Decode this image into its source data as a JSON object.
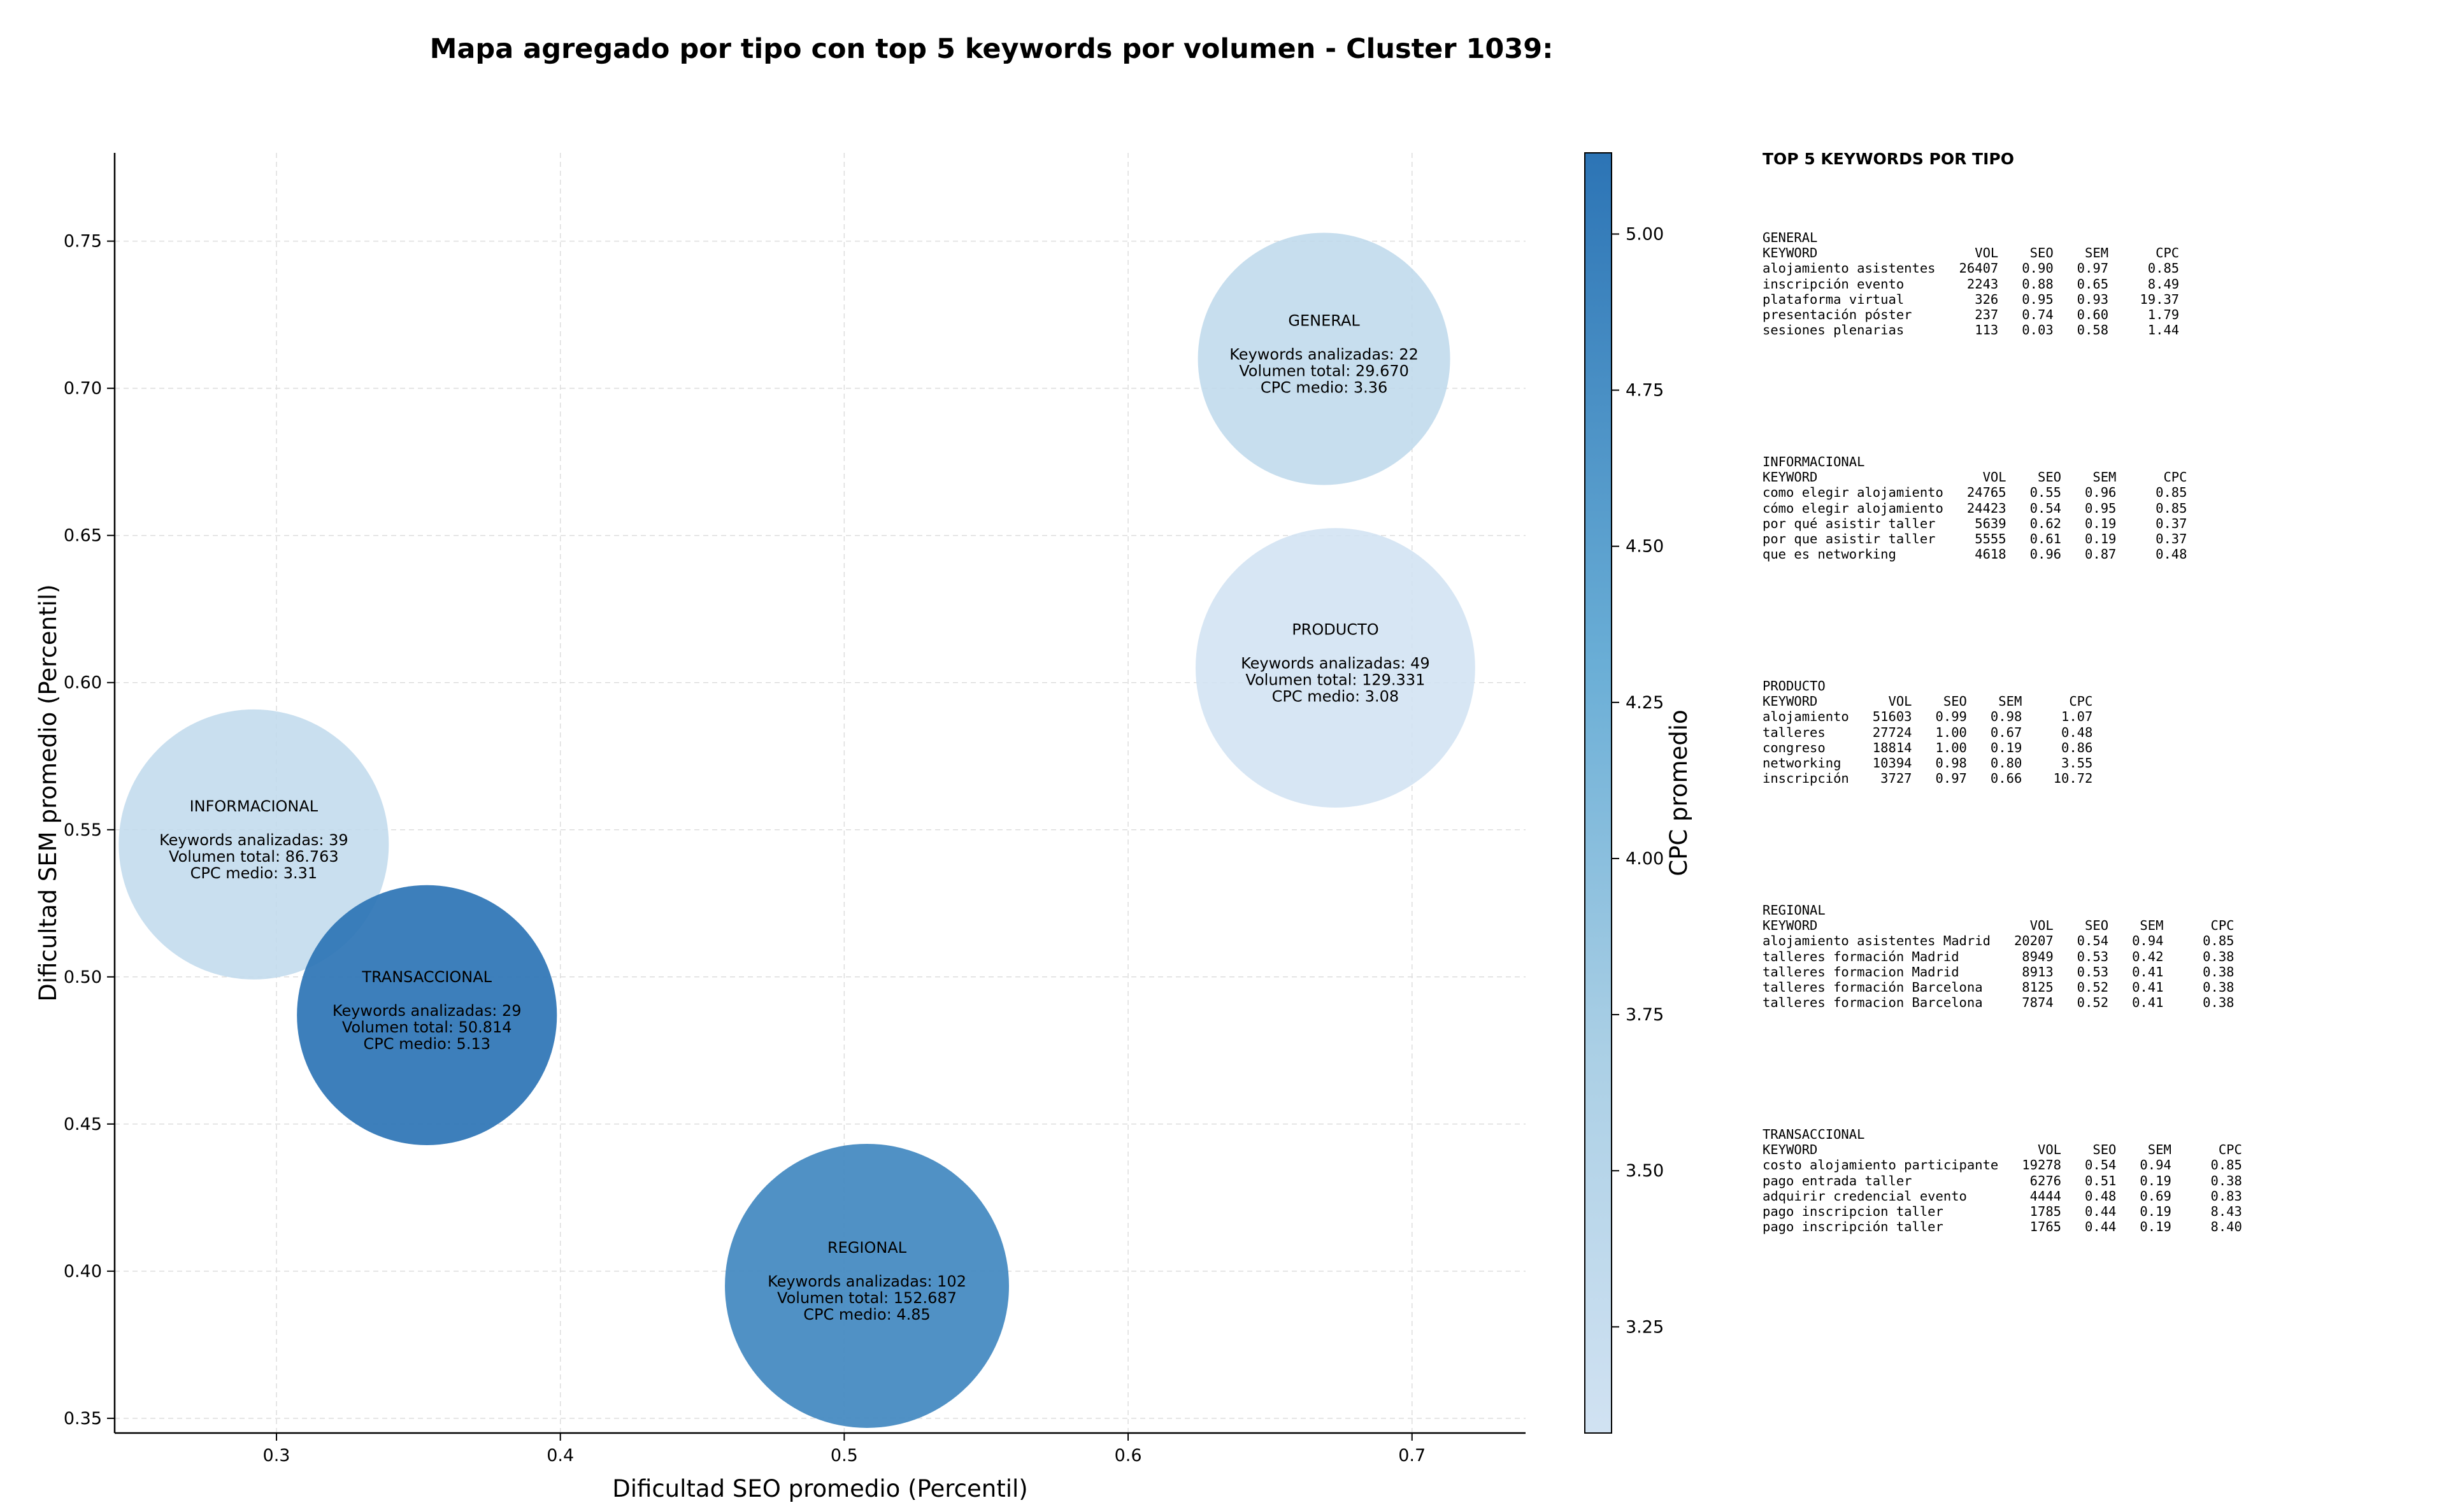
{
  "title": "Mapa agregado por tipo con top 5 keywords por volumen - Cluster 1039:",
  "colors": {
    "cmap_low": "#d1e2f2",
    "cmap_mid_low": "#aacfe5",
    "cmap_mid": "#6aaed6",
    "cmap_high": "#2c74b5",
    "grid": "#dddddd",
    "axis": "#000000"
  },
  "chart_data": {
    "type": "scatter",
    "title": "Mapa agregado por tipo con top 5 keywords por volumen - Cluster 1039:",
    "xlabel": "Dificultad SEO promedio (Percentil)",
    "ylabel": "Dificultad SEM promedio (Percentil)",
    "xlim": [
      0.243,
      0.74
    ],
    "ylim": [
      0.345,
      0.78
    ],
    "xticks": [
      "0.3",
      "0.4",
      "0.5",
      "0.6",
      "0.7"
    ],
    "yticks": [
      "0.35",
      "0.40",
      "0.45",
      "0.50",
      "0.55",
      "0.60",
      "0.65",
      "0.70",
      "0.75"
    ],
    "grid": true,
    "bubble_size": "volumen total",
    "colorbar": {
      "label": "CPC promedio",
      "range": [
        3.08,
        5.13
      ],
      "ticks": [
        "3.25",
        "3.50",
        "3.75",
        "4.00",
        "4.25",
        "4.50",
        "4.75",
        "5.00"
      ]
    },
    "points": [
      {
        "name": "GENERAL",
        "x": 0.669,
        "y": 0.71,
        "volume": 29670,
        "cpc": 3.36,
        "label_name": "GENERAL",
        "label_lines": [
          "Keywords analizadas: 22",
          "Volumen total: 29.670",
          "CPC medio: 3.36"
        ]
      },
      {
        "name": "PRODUCTO",
        "x": 0.673,
        "y": 0.605,
        "volume": 129331,
        "cpc": 3.08,
        "label_name": "PRODUCTO",
        "label_lines": [
          "Keywords analizadas: 49",
          "Volumen total: 129.331",
          "CPC medio: 3.08"
        ]
      },
      {
        "name": "INFORMACIONAL",
        "x": 0.292,
        "y": 0.545,
        "volume": 86763,
        "cpc": 3.31,
        "label_name": "INFORMACIONAL",
        "label_lines": [
          "Keywords analizadas: 39",
          "Volumen total: 86.763",
          "CPC medio: 3.31"
        ]
      },
      {
        "name": "TRANSACCIONAL",
        "x": 0.353,
        "y": 0.487,
        "volume": 50814,
        "cpc": 5.13,
        "label_name": "TRANSACCIONAL",
        "label_lines": [
          "Keywords analizadas: 29",
          "Volumen total: 50.814",
          "CPC medio: 5.13"
        ]
      },
      {
        "name": "REGIONAL",
        "x": 0.508,
        "y": 0.395,
        "volume": 152687,
        "cpc": 4.85,
        "label_name": "REGIONAL",
        "label_lines": [
          "Keywords analizadas: 102",
          "Volumen total: 152.687",
          "CPC medio: 4.85"
        ]
      }
    ]
  },
  "side_panel": {
    "title": "TOP 5 KEYWORDS POR TIPO",
    "blocks": [
      {
        "lines": [
          "GENERAL",
          "KEYWORD                    VOL    SEO    SEM      CPC",
          "alojamiento asistentes   26407   0.90   0.97     0.85",
          "inscripción evento        2243   0.88   0.65     8.49",
          "plataforma virtual         326   0.95   0.93    19.37",
          "presentación póster        237   0.74   0.60     1.79",
          "sesiones plenarias         113   0.03   0.58     1.44"
        ]
      },
      {
        "lines": [
          "INFORMACIONAL",
          "KEYWORD                     VOL    SEO    SEM      CPC",
          "como elegir alojamiento   24765   0.55   0.96     0.85",
          "cómo elegir alojamiento   24423   0.54   0.95     0.85",
          "por qué asistir taller     5639   0.62   0.19     0.37",
          "por que asistir taller     5555   0.61   0.19     0.37",
          "que es networking          4618   0.96   0.87     0.48"
        ]
      },
      {
        "lines": [
          "PRODUCTO",
          "KEYWORD         VOL    SEO    SEM      CPC",
          "alojamiento   51603   0.99   0.98     1.07",
          "talleres      27724   1.00   0.67     0.48",
          "congreso      18814   1.00   0.19     0.86",
          "networking    10394   0.98   0.80     3.55",
          "inscripción    3727   0.97   0.66    10.72"
        ]
      },
      {
        "lines": [
          "REGIONAL",
          "KEYWORD                           VOL    SEO    SEM      CPC",
          "alojamiento asistentes Madrid   20207   0.54   0.94     0.85",
          "talleres formación Madrid        8949   0.53   0.42     0.38",
          "talleres formacion Madrid        8913   0.53   0.41     0.38",
          "talleres formación Barcelona     8125   0.52   0.41     0.38",
          "talleres formacion Barcelona     7874   0.52   0.41     0.38"
        ]
      },
      {
        "lines": [
          "TRANSACCIONAL",
          "KEYWORD                            VOL    SEO    SEM      CPC",
          "costo alojamiento participante   19278   0.54   0.94     0.85",
          "pago entrada taller               6276   0.51   0.19     0.38",
          "adquirir credencial evento        4444   0.48   0.69     0.83",
          "pago inscripcion taller           1785   0.44   0.19     8.43",
          "pago inscripción taller           1765   0.44   0.19     8.40"
        ]
      }
    ]
  }
}
